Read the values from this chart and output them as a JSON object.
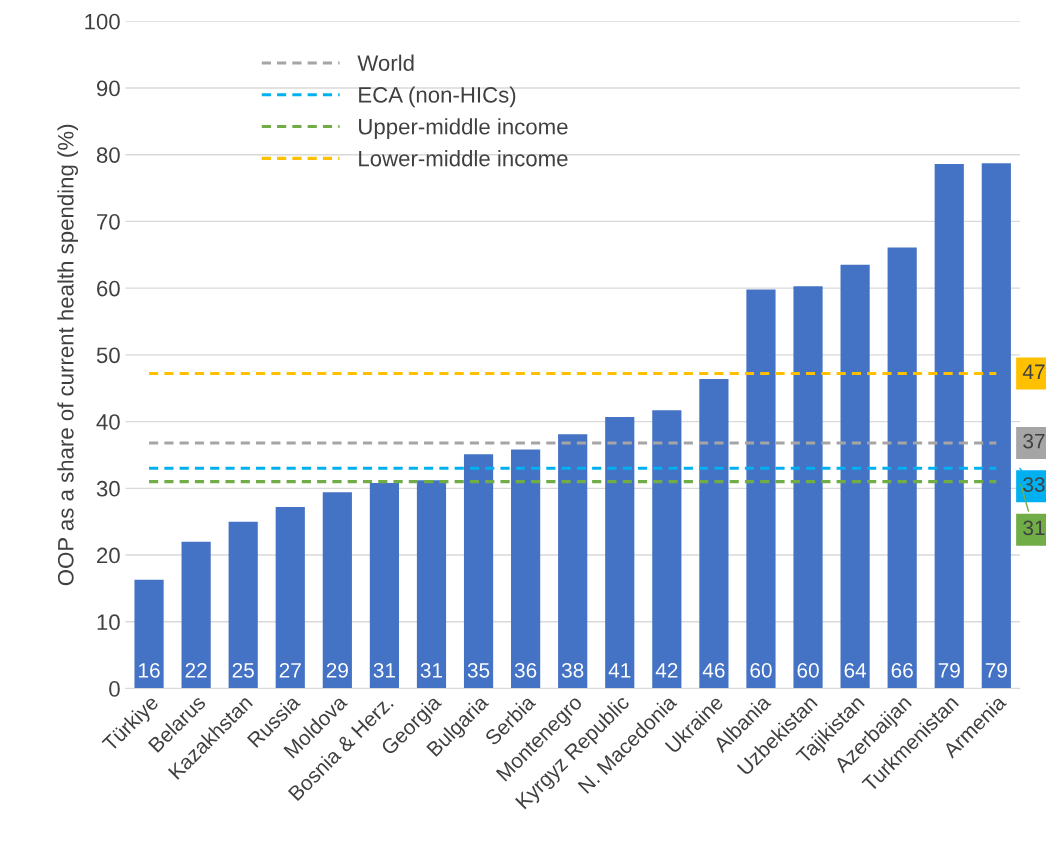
{
  "chart_data": {
    "type": "bar",
    "ylabel": "OOP as a share of current health spending (%)",
    "categories": [
      "Türkiye",
      "Belarus",
      "Kazakhstan",
      "Russia",
      "Moldova",
      "Bosnia & Herz.",
      "Georgia",
      "Bulgaria",
      "Serbia",
      "Montenegro",
      "Kyrgyz Republic",
      "N. Macedonia",
      "Ukraine",
      "Albania",
      "Uzbekistan",
      "Tajikistan",
      "Azerbaijan",
      "Turkmenistan",
      "Armenia"
    ],
    "series": [
      {
        "color": "#4472c4",
        "values": [
          16.3,
          22,
          25,
          27.2,
          29.4,
          30.8,
          31.2,
          35.1,
          35.8,
          38.1,
          40.7,
          41.7,
          46.4,
          59.8,
          60.3,
          63.5,
          66.1,
          78.6,
          78.7
        ],
        "value_labels": [
          "16",
          "22",
          "25",
          "27",
          "29",
          "31",
          "31",
          "35",
          "36",
          "38",
          "41",
          "42",
          "46",
          "60",
          "60",
          "64",
          "66",
          "79",
          "79"
        ]
      },
      {
        "type": "line",
        "name": "World",
        "color": "#a5a5a5",
        "line_style": "dashed",
        "values": [
          36.8,
          36.8,
          36.8,
          36.8,
          36.8,
          36.8,
          36.8,
          36.8,
          36.8,
          36.8,
          36.8,
          36.8,
          36.8,
          36.8,
          36.8,
          36.8,
          36.8,
          36.8,
          36.8
        ],
        "value_labels": [
          null,
          null,
          null,
          null,
          null,
          null,
          null,
          null,
          null,
          null,
          null,
          null,
          null,
          null,
          null,
          null,
          null,
          null,
          "37"
        ]
      },
      {
        "type": "line",
        "name": "ECA (non-HICs)",
        "color": "#00b0f0",
        "line_style": "dashed",
        "values": [
          33,
          33,
          33,
          33,
          33,
          33,
          33,
          33,
          33,
          33,
          33,
          33,
          33,
          33,
          33,
          33,
          33,
          33,
          33
        ],
        "value_labels": [
          null,
          null,
          null,
          null,
          null,
          null,
          null,
          null,
          null,
          null,
          null,
          null,
          null,
          null,
          null,
          null,
          null,
          null,
          "33"
        ]
      },
      {
        "type": "line",
        "name": "Upper-middle income",
        "color": "#70ad47",
        "line_style": "dashed",
        "values": [
          31,
          31,
          31,
          31,
          31,
          31,
          31,
          31,
          31,
          31,
          31,
          31,
          31,
          31,
          31,
          31,
          31,
          31,
          31
        ],
        "value_labels": [
          null,
          null,
          null,
          null,
          null,
          null,
          null,
          null,
          null,
          null,
          null,
          null,
          null,
          null,
          null,
          null,
          null,
          null,
          "31"
        ]
      },
      {
        "type": "line",
        "name": "Lower-middle income",
        "color": "#ffc000",
        "line_style": "dashed",
        "values": [
          47.2,
          47.2,
          47.2,
          47.2,
          47.2,
          47.2,
          47.2,
          47.2,
          47.2,
          47.2,
          47.2,
          47.2,
          47.2,
          47.2,
          47.2,
          47.2,
          47.2,
          47.2,
          47.2
        ],
        "value_labels": [
          null,
          null,
          null,
          null,
          null,
          null,
          null,
          null,
          null,
          null,
          null,
          null,
          null,
          null,
          null,
          null,
          null,
          null,
          "47"
        ]
      }
    ],
    "ylim": [
      0,
      100
    ],
    "yticks": [
      0,
      10,
      20,
      30,
      40,
      50,
      60,
      70,
      80,
      90,
      100
    ],
    "grid": "y",
    "legend": "top left"
  }
}
